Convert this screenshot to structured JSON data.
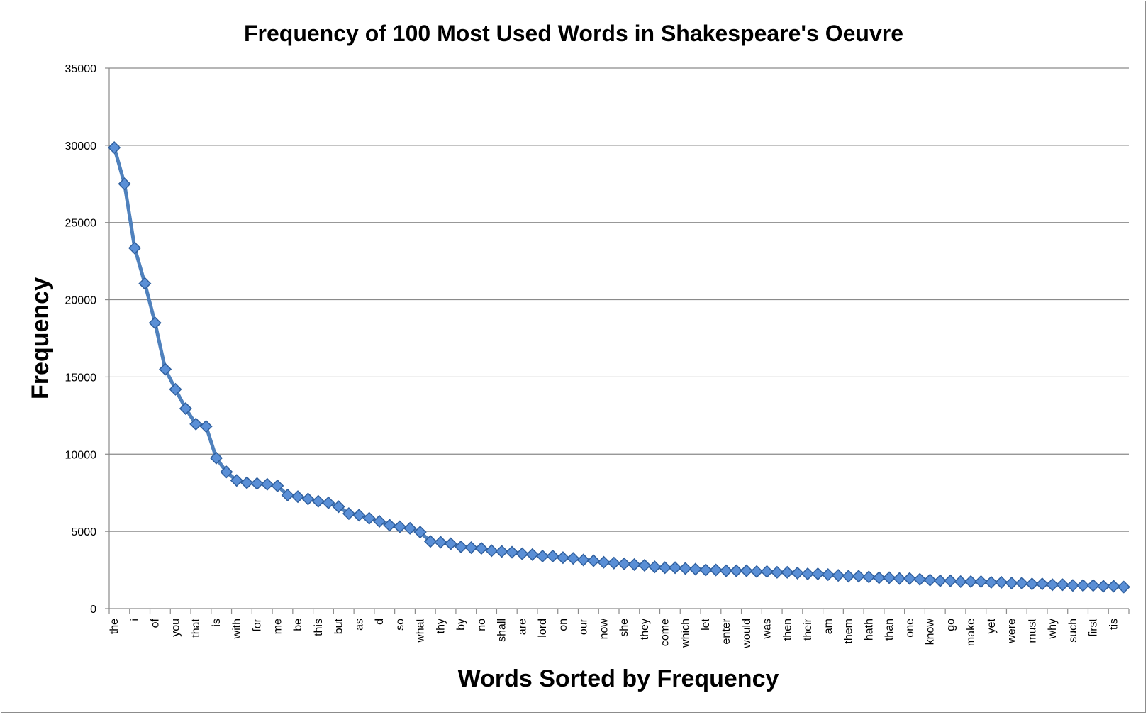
{
  "chart_data": {
    "type": "line",
    "title": "Frequency of 100 Most Used Words in Shakespeare's Oeuvre",
    "xlabel": "Words Sorted by Frequency",
    "ylabel": "Frequency",
    "ylim": [
      0,
      35000
    ],
    "yticks": [
      0,
      5000,
      10000,
      15000,
      20000,
      25000,
      30000,
      35000
    ],
    "grid": true,
    "legend": "none",
    "series_color": "#4f81bd",
    "marker": "diamond",
    "x_tick_labels": [
      "the",
      "i",
      "of",
      "you",
      "that",
      "is",
      "with",
      "for",
      "me",
      "be",
      "this",
      "but",
      "as",
      "d",
      "so",
      "what",
      "thy",
      "by",
      "no",
      "shall",
      "are",
      "lord",
      "on",
      "our",
      "now",
      "she",
      "they",
      "come",
      "which",
      "let",
      "enter",
      "would",
      "was",
      "then",
      "their",
      "am",
      "them",
      "hath",
      "than",
      "one",
      "know",
      "go",
      "make",
      "yet",
      "were",
      "must",
      "why",
      "such",
      "first",
      "tis"
    ],
    "values": [
      29850,
      27500,
      23350,
      21050,
      18500,
      15500,
      14200,
      12950,
      11950,
      11800,
      9750,
      8850,
      8300,
      8150,
      8100,
      8050,
      7950,
      7350,
      7250,
      7100,
      6950,
      6850,
      6600,
      6150,
      6050,
      5850,
      5650,
      5400,
      5300,
      5200,
      4950,
      4350,
      4300,
      4200,
      4000,
      3950,
      3900,
      3750,
      3700,
      3650,
      3550,
      3500,
      3400,
      3400,
      3300,
      3250,
      3150,
      3100,
      3000,
      2950,
      2900,
      2850,
      2800,
      2700,
      2650,
      2650,
      2600,
      2550,
      2500,
      2500,
      2450,
      2450,
      2450,
      2400,
      2400,
      2350,
      2350,
      2300,
      2250,
      2250,
      2200,
      2150,
      2100,
      2100,
      2050,
      2000,
      2000,
      1950,
      1950,
      1900,
      1850,
      1800,
      1800,
      1750,
      1750,
      1750,
      1700,
      1700,
      1650,
      1650,
      1600,
      1600,
      1550,
      1550,
      1500,
      1500,
      1500,
      1450,
      1450,
      1400
    ]
  }
}
